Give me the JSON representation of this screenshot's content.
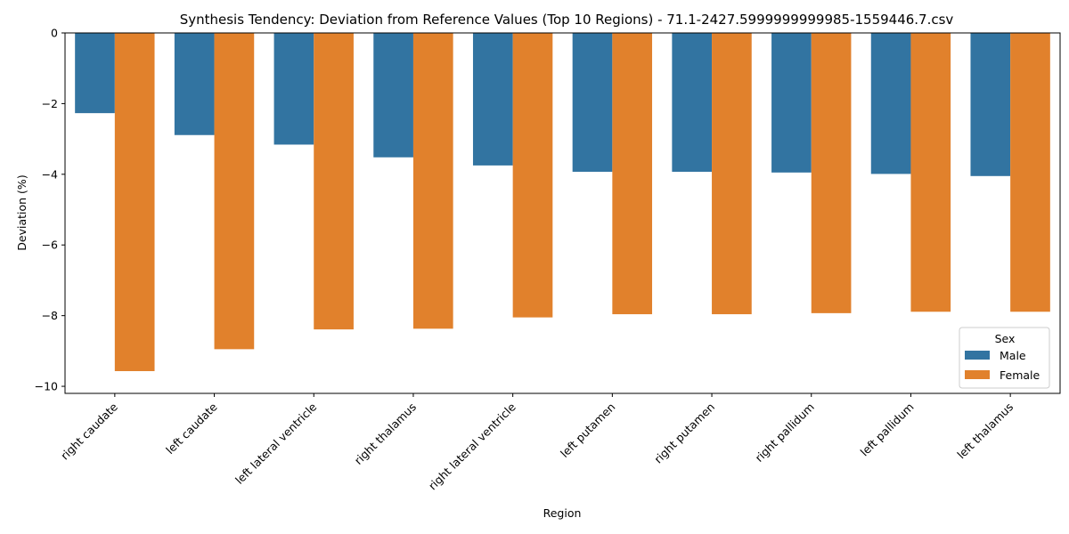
{
  "chart_data": {
    "type": "bar",
    "title": "Synthesis Tendency: Deviation from Reference Values (Top 10 Regions) - 71.1-2427.5999999999985-1559446.7.csv",
    "xlabel": "Region",
    "ylabel": "Deviation (%)",
    "ylim": [
      -10.2,
      0
    ],
    "yticks": [
      0,
      -2,
      -4,
      -6,
      -8,
      -10
    ],
    "categories": [
      "right caudate",
      "left caudate",
      "left lateral ventricle",
      "right thalamus",
      "right lateral ventricle",
      "left putamen",
      "right putamen",
      "right pallidum",
      "left pallidum",
      "left thalamus"
    ],
    "series": [
      {
        "name": "Male",
        "color": "#3274a1",
        "values": [
          -2.27,
          -2.89,
          -3.16,
          -3.52,
          -3.75,
          -3.93,
          -3.93,
          -3.95,
          -3.99,
          -4.05
        ]
      },
      {
        "name": "Female",
        "color": "#e1812c",
        "values": [
          -9.57,
          -8.95,
          -8.39,
          -8.37,
          -8.05,
          -7.96,
          -7.96,
          -7.93,
          -7.89,
          -7.89
        ]
      }
    ],
    "legend": {
      "title": "Sex",
      "placement": "lower-right"
    },
    "grid": false
  }
}
